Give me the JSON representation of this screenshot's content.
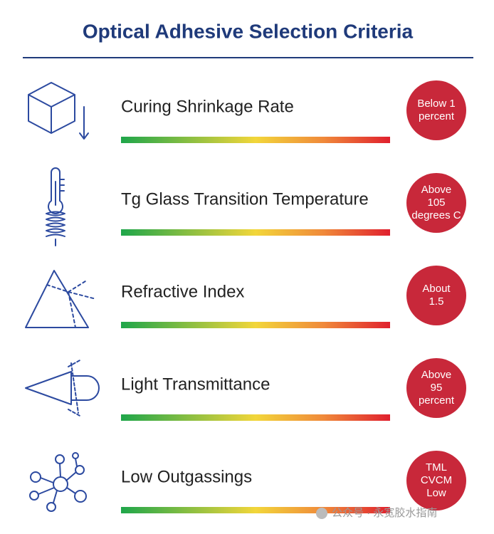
{
  "title": "Optical Adhesive Selection Criteria",
  "rows": [
    {
      "label": "Curing Shrinkage Rate",
      "badge": [
        "Below 1",
        "percent"
      ]
    },
    {
      "label": "Tg Glass Transition Temperature",
      "badge": [
        "Above",
        "105",
        "degrees C"
      ]
    },
    {
      "label": "Refractive Index",
      "badge": [
        "About",
        "1.5"
      ]
    },
    {
      "label": "Light Transmittance",
      "badge": [
        "Above",
        "95",
        "percent"
      ]
    },
    {
      "label": "Low Outgassings",
      "badge": [
        "TML",
        "CVCM",
        "Low"
      ]
    }
  ],
  "watermark": "公众号 · 永宽胶水指南"
}
